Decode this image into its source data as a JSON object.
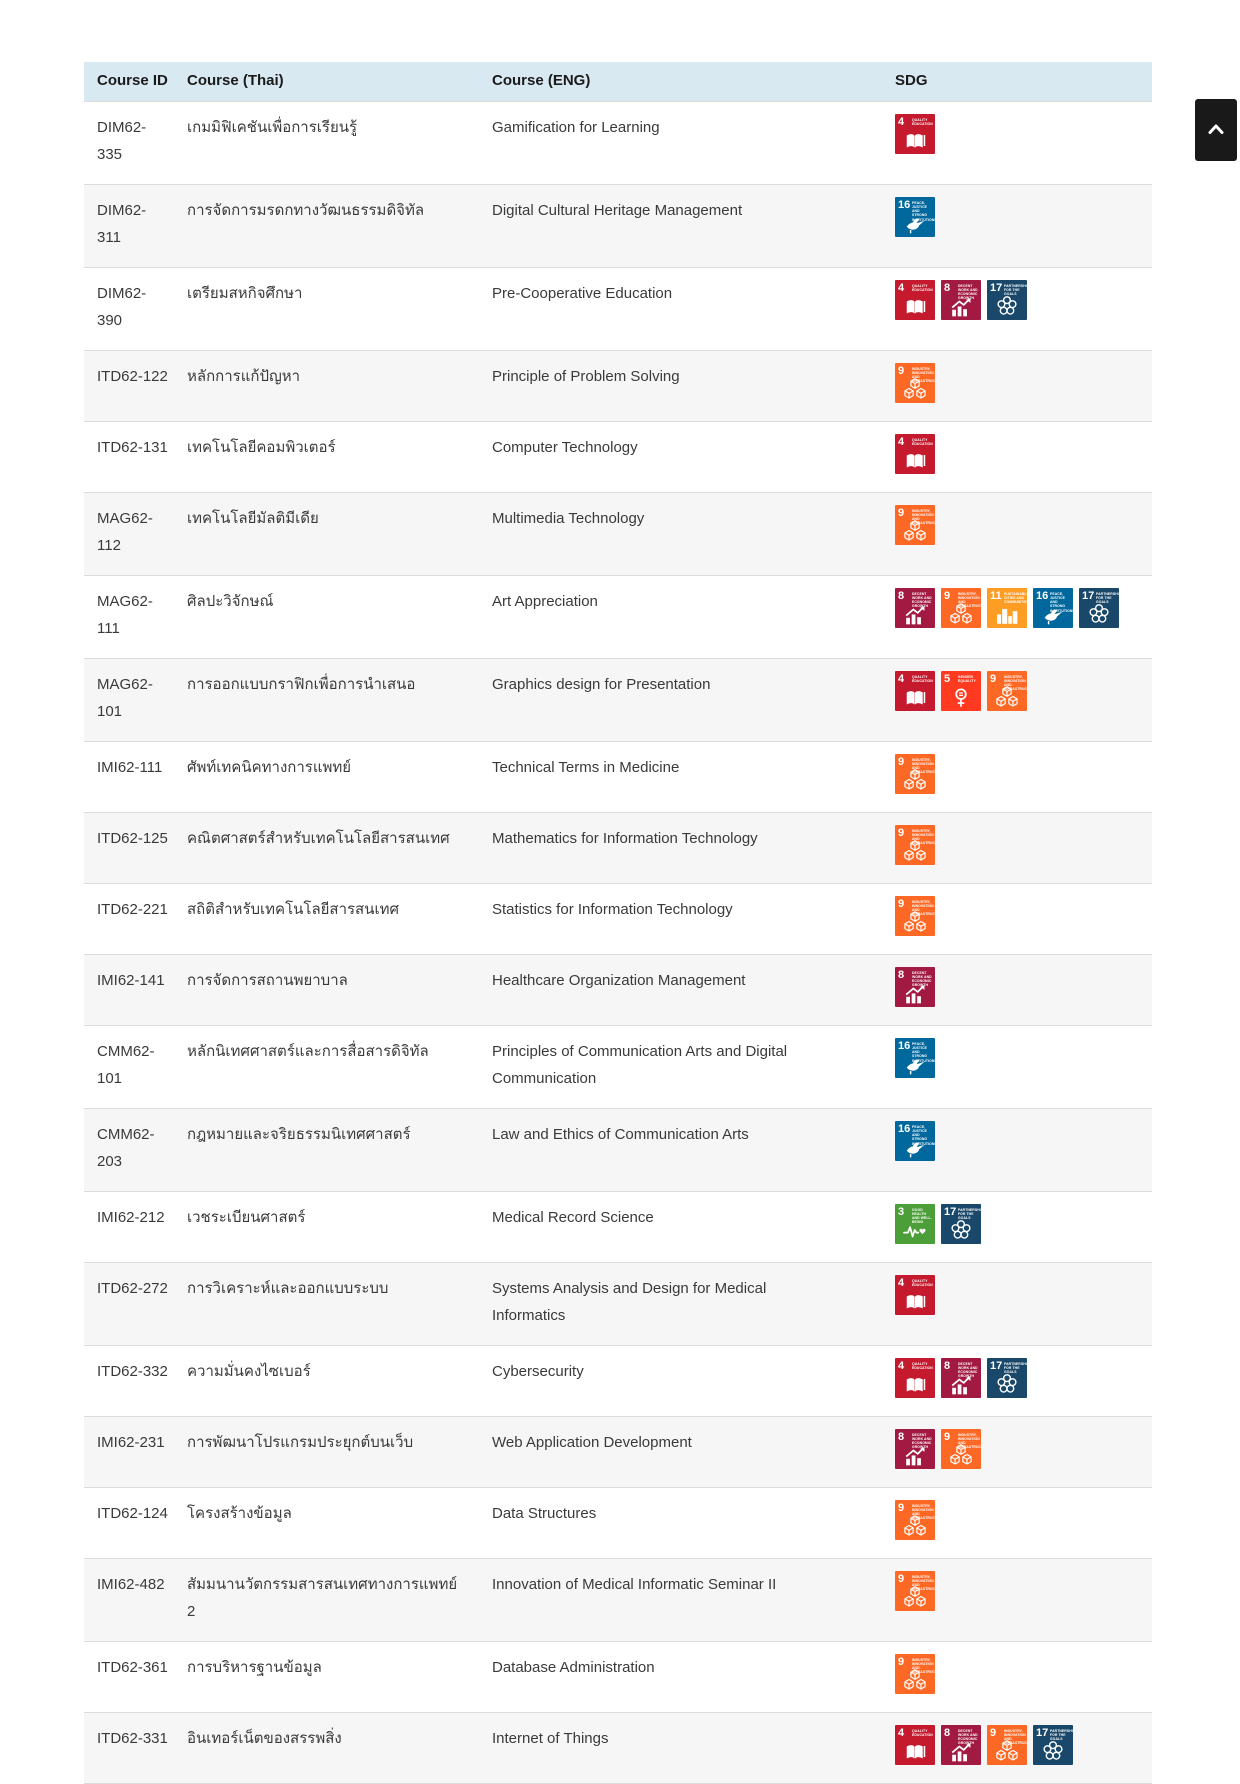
{
  "table": {
    "header": {
      "bg": "#d8e9f2",
      "columns": [
        "Course ID",
        "Course (Thai)",
        "Course (ENG)",
        "SDG"
      ]
    },
    "zebra_bg": "#f6f6f6",
    "rows": [
      {
        "id": "DIM62-335",
        "thai": "เกมมิฟิเคชันเพื่อการเรียนรู้",
        "eng": "Gamification for Learning",
        "sdgs": [
          4
        ]
      },
      {
        "id": "DIM62-311",
        "thai": "การจัดการมรดกทางวัฒนธรรมดิจิทัล",
        "eng": "Digital Cultural Heritage Management",
        "sdgs": [
          16
        ]
      },
      {
        "id": "DIM62-390",
        "thai": "เตรียมสหกิจศึกษา",
        "eng": "Pre-Cooperative Education",
        "sdgs": [
          4,
          8,
          17
        ]
      },
      {
        "id": "ITD62-122",
        "thai": "หลักการแก้ปัญหา",
        "eng": "Principle of Problem Solving",
        "sdgs": [
          9
        ]
      },
      {
        "id": "ITD62-131",
        "thai": "เทคโนโลยีคอมพิวเตอร์",
        "eng": "Computer Technology",
        "sdgs": [
          4
        ]
      },
      {
        "id": "MAG62-112",
        "thai": "เทคโนโลยีมัลติมีเดีย",
        "eng": "Multimedia Technology",
        "sdgs": [
          9
        ]
      },
      {
        "id": "MAG62-111",
        "thai": "ศิลปะวิจักษณ์",
        "eng": "Art Appreciation",
        "sdgs": [
          8,
          9,
          11,
          16,
          17
        ]
      },
      {
        "id": "MAG62-101",
        "thai": "การออกแบบกราฟิกเพื่อการนำเสนอ",
        "eng": "Graphics design for Presentation",
        "sdgs": [
          4,
          5,
          9
        ]
      },
      {
        "id": "IMI62-111",
        "thai": "ศัพท์เทคนิคทางการแพทย์",
        "eng": "Technical Terms in Medicine",
        "sdgs": [
          9
        ]
      },
      {
        "id": "ITD62-125",
        "thai": "คณิตศาสตร์สำหรับเทคโนโลยีสารสนเทศ",
        "eng": "Mathematics for Information Technology",
        "sdgs": [
          9
        ]
      },
      {
        "id": "ITD62-221",
        "thai": "สถิติสำหรับเทคโนโลยีสารสนเทศ",
        "eng": "Statistics for Information Technology",
        "sdgs": [
          9
        ]
      },
      {
        "id": "IMI62-141",
        "thai": "การจัดการสถานพยาบาล",
        "eng": "Healthcare Organization Management",
        "sdgs": [
          8
        ]
      },
      {
        "id": "CMM62-101",
        "thai": "หลักนิเทศศาสตร์และการสื่อสารดิจิทัล",
        "eng": "Principles of Communication Arts and Digital Communication",
        "sdgs": [
          16
        ]
      },
      {
        "id": "CMM62-203",
        "thai": "กฎหมายและจริยธรรมนิเทศศาสตร์",
        "eng": "Law and Ethics of Communication Arts",
        "sdgs": [
          16
        ]
      },
      {
        "id": "IMI62-212",
        "thai": "เวชระเบียนศาสตร์",
        "eng": "Medical Record Science",
        "sdgs": [
          3,
          17
        ]
      },
      {
        "id": "ITD62-272",
        "thai": "การวิเคราะห์และออกแบบระบบ",
        "eng": "Systems Analysis and Design for Medical Informatics",
        "sdgs": [
          4
        ]
      },
      {
        "id": "ITD62-332",
        "thai": "ความมั่นคงไซเบอร์",
        "eng": "Cybersecurity",
        "sdgs": [
          4,
          8,
          17
        ]
      },
      {
        "id": "IMI62-231",
        "thai": "การพัฒนาโปรแกรมประยุกต์บนเว็บ",
        "eng": "Web Application Development",
        "sdgs": [
          8,
          9
        ]
      },
      {
        "id": "ITD62-124",
        "thai": "โครงสร้างข้อมูล",
        "eng": "Data Structures",
        "sdgs": [
          9
        ]
      },
      {
        "id": "IMI62-482",
        "thai": "สัมมนานวัตกรรมสารสนเทศทางการแพทย์ 2",
        "eng": "Innovation of Medical Informatic Seminar II",
        "sdgs": [
          9
        ]
      },
      {
        "id": "ITD62-361",
        "thai": "การบริหารฐานข้อมูล",
        "eng": "Database Administration",
        "sdgs": [
          9
        ]
      },
      {
        "id": "ITD62-331",
        "thai": "อินเทอร์เน็ตของสรรพสิ่ง",
        "eng": "Internet of Things",
        "sdgs": [
          4,
          8,
          9,
          17
        ]
      }
    ]
  },
  "sdg_catalog": {
    "3": {
      "num": "3",
      "label": "GOOD HEALTH AND WELL-BEING",
      "color": "#4C9F38",
      "icon": "heartbeat-icon"
    },
    "4": {
      "num": "4",
      "label": "QUALITY EDUCATION",
      "color": "#C5192D",
      "icon": "book-icon"
    },
    "5": {
      "num": "5",
      "label": "GENDER EQUALITY",
      "color": "#FF3A21",
      "icon": "gender-equality-icon"
    },
    "8": {
      "num": "8",
      "label": "DECENT WORK AND ECONOMIC GROWTH",
      "color": "#A21942",
      "icon": "growth-chart-icon"
    },
    "9": {
      "num": "9",
      "label": "INDUSTRY, INNOVATION AND INFRASTRUCTURE",
      "color": "#FD6925",
      "icon": "cubes-icon"
    },
    "11": {
      "num": "11",
      "label": "SUSTAINABLE CITIES AND COMMUNITIES",
      "color": "#FD9D24",
      "icon": "city-icon"
    },
    "16": {
      "num": "16",
      "label": "PEACE, JUSTICE AND STRONG INSTITUTIONS",
      "color": "#00689D",
      "icon": "dove-icon"
    },
    "17": {
      "num": "17",
      "label": "PARTNERSHIPS FOR THE GOALS",
      "color": "#19486A",
      "icon": "circle-flower-icon"
    }
  },
  "scroll_top_button": {
    "icon": "chevron-up-icon",
    "color": "#191919"
  }
}
